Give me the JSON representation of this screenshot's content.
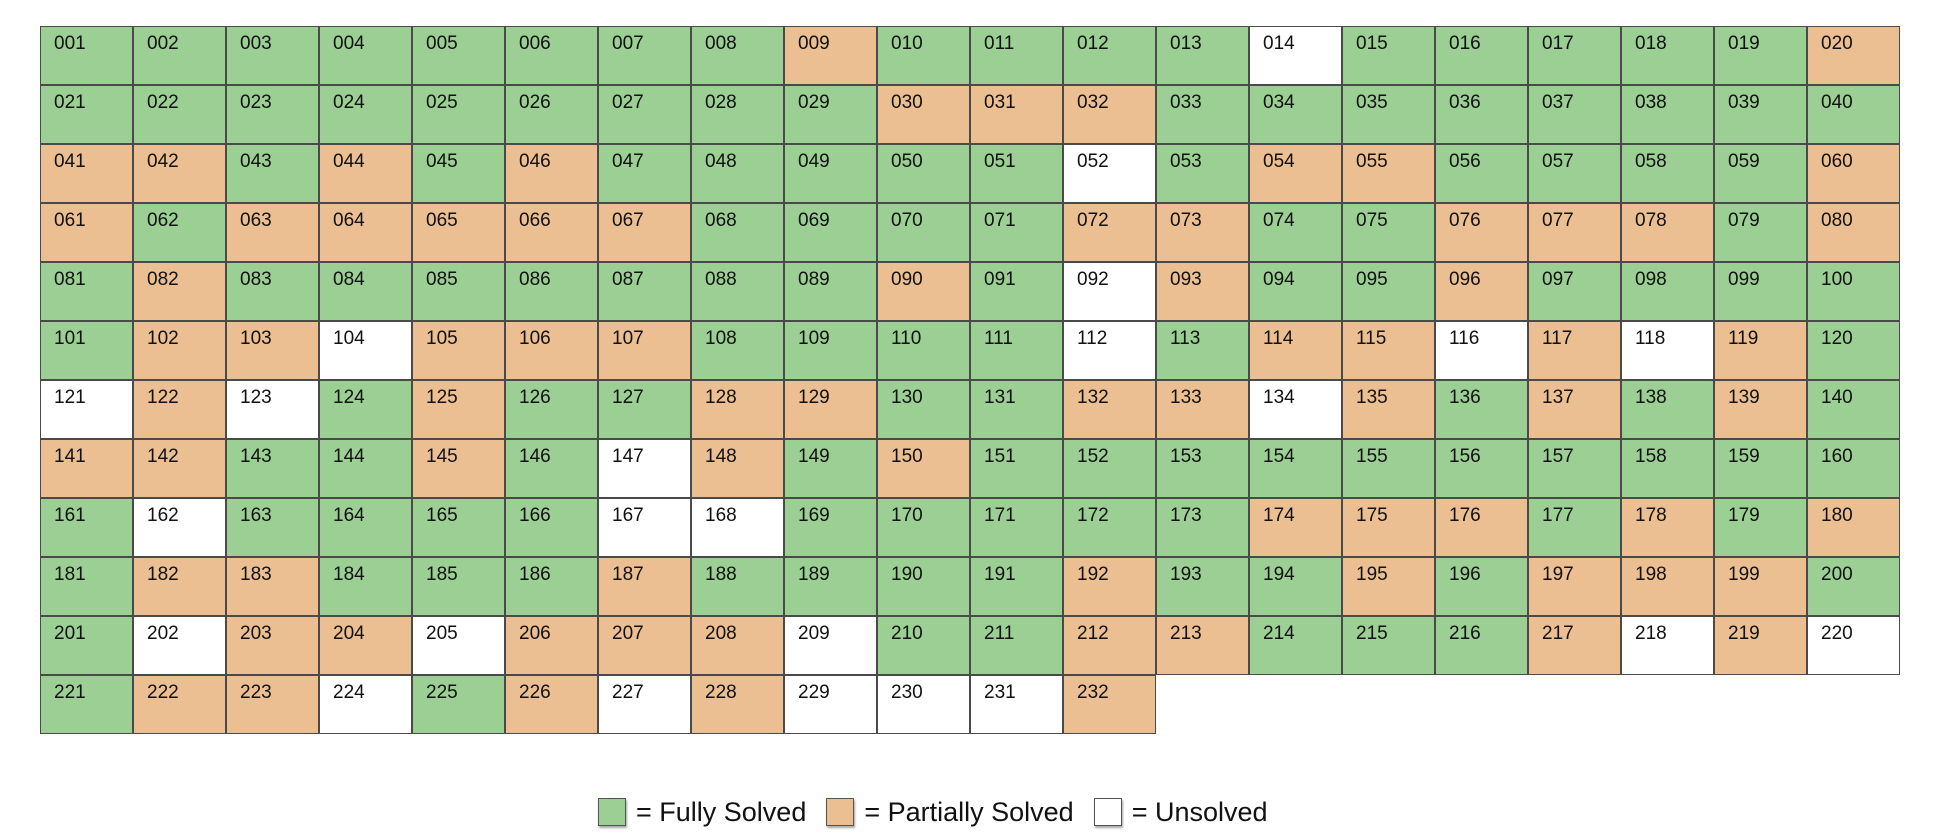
{
  "chart_data": {
    "type": "table",
    "colors": {
      "fully_solved": "#9bcf94",
      "partially_solved": "#ecbf93",
      "unsolved": "#ffffff"
    },
    "legend": [
      {
        "key": "fully_solved",
        "label": "= Fully Solved"
      },
      {
        "key": "partially_solved",
        "label": "= Partially Solved"
      },
      {
        "key": "unsolved",
        "label": "= Unsolved"
      }
    ],
    "columns": 20,
    "status_codes": {
      "G": "fully_solved",
      "P": "partially_solved",
      "W": "unsolved"
    },
    "rows": [
      [
        "G",
        "G",
        "G",
        "G",
        "G",
        "G",
        "G",
        "G",
        "P",
        "G",
        "G",
        "G",
        "G",
        "W",
        "G",
        "G",
        "G",
        "G",
        "G",
        "P"
      ],
      [
        "G",
        "G",
        "G",
        "G",
        "G",
        "G",
        "G",
        "G",
        "G",
        "P",
        "P",
        "P",
        "G",
        "G",
        "G",
        "G",
        "G",
        "G",
        "G",
        "G"
      ],
      [
        "P",
        "P",
        "G",
        "P",
        "G",
        "P",
        "G",
        "G",
        "G",
        "G",
        "G",
        "W",
        "G",
        "P",
        "P",
        "G",
        "G",
        "G",
        "G",
        "P"
      ],
      [
        "P",
        "G",
        "P",
        "P",
        "P",
        "P",
        "P",
        "G",
        "G",
        "G",
        "G",
        "P",
        "P",
        "G",
        "G",
        "P",
        "P",
        "P",
        "G",
        "P"
      ],
      [
        "G",
        "P",
        "G",
        "G",
        "G",
        "G",
        "G",
        "G",
        "G",
        "P",
        "G",
        "W",
        "P",
        "G",
        "G",
        "P",
        "G",
        "G",
        "G",
        "G"
      ],
      [
        "G",
        "P",
        "P",
        "W",
        "P",
        "P",
        "P",
        "G",
        "G",
        "G",
        "G",
        "W",
        "G",
        "P",
        "P",
        "W",
        "P",
        "W",
        "P",
        "G"
      ],
      [
        "W",
        "P",
        "W",
        "G",
        "P",
        "G",
        "G",
        "P",
        "P",
        "G",
        "G",
        "P",
        "P",
        "W",
        "P",
        "G",
        "P",
        "G",
        "P",
        "G"
      ],
      [
        "P",
        "P",
        "G",
        "G",
        "P",
        "G",
        "W",
        "P",
        "G",
        "P",
        "G",
        "G",
        "G",
        "G",
        "G",
        "G",
        "G",
        "G",
        "G",
        "G"
      ],
      [
        "G",
        "W",
        "G",
        "G",
        "G",
        "G",
        "W",
        "W",
        "G",
        "G",
        "G",
        "G",
        "G",
        "P",
        "P",
        "P",
        "G",
        "P",
        "G",
        "P"
      ],
      [
        "G",
        "P",
        "P",
        "G",
        "G",
        "G",
        "P",
        "G",
        "G",
        "G",
        "G",
        "P",
        "G",
        "G",
        "P",
        "G",
        "P",
        "P",
        "P",
        "G"
      ],
      [
        "G",
        "W",
        "P",
        "P",
        "W",
        "P",
        "P",
        "P",
        "W",
        "G",
        "G",
        "P",
        "P",
        "G",
        "G",
        "G",
        "P",
        "W",
        "P",
        "W"
      ],
      [
        "G",
        "P",
        "P",
        "W",
        "G",
        "P",
        "W",
        "P",
        "W",
        "W",
        "W",
        "P"
      ]
    ]
  }
}
